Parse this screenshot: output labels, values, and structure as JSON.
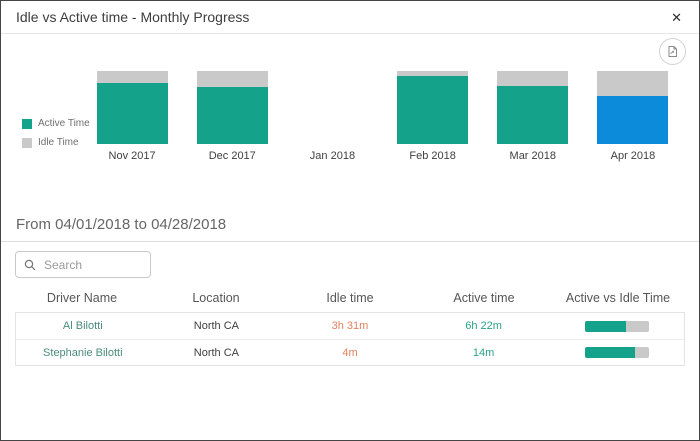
{
  "modal": {
    "title": "Idle vs Active time - Monthly Progress",
    "close_glyph": "✕"
  },
  "toolbar": {
    "export_icon": "export-report-icon"
  },
  "colors": {
    "active": "#14a38a",
    "idle": "#c9c9c9",
    "selected": "#0b8bd9",
    "idle_text": "#e0815c",
    "active_text": "#2aa188",
    "driver_text": "#4a8c7d"
  },
  "chart_data": {
    "type": "bar",
    "stacked": true,
    "unit": "percent",
    "ylim": [
      0,
      100
    ],
    "grid": false,
    "legend_position": "left",
    "categories": [
      "Nov 2017",
      "Dec 2017",
      "Jan 2018",
      "Feb 2018",
      "Mar 2018",
      "Apr 2018"
    ],
    "series": [
      {
        "name": "Active Time",
        "color_key": "active",
        "values": [
          83,
          78,
          null,
          93,
          79,
          66
        ]
      },
      {
        "name": "Idle Time",
        "color_key": "idle",
        "values": [
          17,
          22,
          null,
          7,
          21,
          34
        ]
      }
    ],
    "selected_category": "Apr 2018"
  },
  "period": {
    "label": "From 04/01/2018 to 04/28/2018"
  },
  "search": {
    "placeholder": "Search"
  },
  "table": {
    "columns": [
      "Driver Name",
      "Location",
      "Idle time",
      "Active time",
      "Active vs Idle Time"
    ],
    "rows": [
      {
        "driver": "Al Bilotti",
        "location": "North CA",
        "idle": "3h 31m",
        "active": "6h 22m",
        "active_pct": 64
      },
      {
        "driver": "Stephanie Bilotti",
        "location": "North CA",
        "idle": "4m",
        "active": "14m",
        "active_pct": 78
      }
    ]
  }
}
